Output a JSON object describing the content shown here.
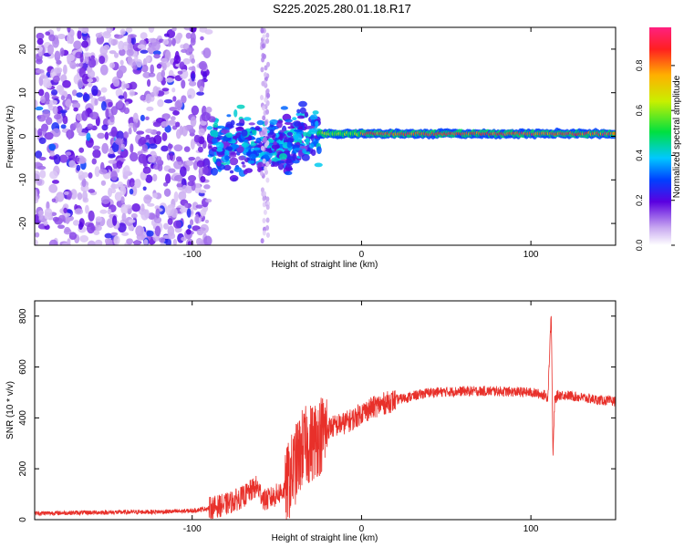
{
  "title": "S225.2025.280.01.18.R17",
  "chart_data": [
    {
      "type": "heatmap",
      "xlabel": "Height of straight line (km)",
      "ylabel": "Frequency (Hz)",
      "xlim": [
        -193,
        150
      ],
      "ylim": [
        -25,
        25
      ],
      "xticks": [
        -100,
        0,
        100
      ],
      "yticks": [
        -20,
        -10,
        0,
        10,
        20
      ],
      "colorbar": {
        "label": "Normalized spectral amplitude",
        "range": [
          0,
          0.97
        ],
        "ticks": [
          0,
          0.2,
          0.4,
          0.6,
          0.8
        ]
      },
      "description_regions": [
        {
          "x_range": [
            -193,
            -90
          ],
          "freq_spread": 25,
          "amplitude": 0.15
        },
        {
          "x_range": [
            -90,
            -25
          ],
          "freq_spread": 8,
          "amplitude": 0.3
        },
        {
          "x_range": [
            -25,
            150
          ],
          "freq_spread": 1.5,
          "amplitude": 0.85
        }
      ]
    },
    {
      "type": "line",
      "xlabel": "Height of straight line (km)",
      "ylabel": "SNR (10 * v/v)",
      "xlim": [
        -193,
        150
      ],
      "ylim": [
        0,
        860
      ],
      "xticks": [
        -100,
        0,
        100
      ],
      "yticks": [
        0,
        200,
        400,
        600,
        800
      ],
      "color": "#e8302a",
      "series": [
        {
          "name": "SNR",
          "x": [
            -193,
            -160,
            -130,
            -110,
            -100,
            -90,
            -80,
            -70,
            -62,
            -57,
            -52,
            -45,
            -40,
            -35,
            -30,
            -25,
            -20,
            -15,
            -10,
            -5,
            0,
            10,
            20,
            30,
            40,
            60,
            80,
            100,
            108,
            110,
            112,
            113,
            114,
            116,
            120,
            130,
            140,
            150
          ],
          "values": [
            25,
            28,
            30,
            32,
            35,
            45,
            60,
            90,
            130,
            75,
            90,
            120,
            200,
            280,
            300,
            330,
            360,
            370,
            380,
            395,
            420,
            450,
            470,
            485,
            500,
            505,
            505,
            500,
            490,
            480,
            820,
            240,
            470,
            490,
            490,
            480,
            470,
            465
          ]
        }
      ]
    }
  ]
}
